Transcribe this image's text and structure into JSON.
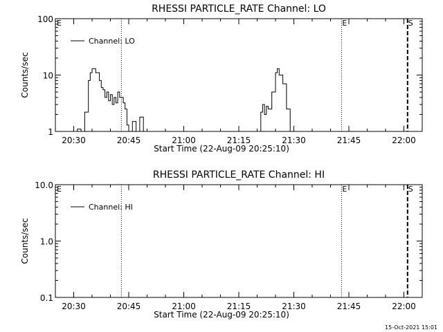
{
  "footer": {
    "timestamp": "15-Oct-2021 15:01"
  },
  "chart_data": [
    {
      "type": "line",
      "title": "RHESSI PARTICLE_RATE Channel: LO",
      "xlabel": "Start Time (22-Aug-09 20:25:10)",
      "ylabel": "Counts/sec",
      "yscale": "log",
      "ylim": [
        1,
        100
      ],
      "xlim": [
        "20:25",
        "22:05"
      ],
      "yticks": [
        "1",
        "10",
        "100"
      ],
      "xticks": [
        "20:30",
        "20:45",
        "21:00",
        "21:15",
        "21:30",
        "21:45",
        "22:00"
      ],
      "legend": {
        "position": "top-left",
        "entries": [
          "Channel: LO"
        ]
      },
      "markers": [
        {
          "time": "20:25",
          "label": "E",
          "style": "none"
        },
        {
          "time": "20:43",
          "label": "",
          "style": "dotted"
        },
        {
          "time": "21:43",
          "label": "E",
          "style": "dotted"
        },
        {
          "time": "22:01",
          "label": "S",
          "style": "dashed"
        }
      ],
      "series": [
        {
          "name": "Channel: LO",
          "segments": [
            {
              "x": [
                "20:30",
                "20:31",
                "20:32",
                "20:33",
                "20:34",
                "20:34.5",
                "20:35",
                "20:36",
                "20:37",
                "20:37.5",
                "20:38",
                "20:38.5",
                "20:39",
                "20:39.5",
                "20:40",
                "20:40.5",
                "20:41",
                "20:41.5",
                "20:42",
                "20:42.5",
                "20:43",
                "20:43.5",
                "20:44",
                "20:44.5",
                "20:45",
                "20:46",
                "20:47",
                "20:48",
                "20:49",
                "20:50"
              ],
              "y": [
                0.5,
                1.1,
                0.5,
                2.2,
                8,
                11,
                13,
                11,
                8,
                6,
                5.5,
                4,
                5,
                3.5,
                4.5,
                3,
                4,
                3.2,
                5,
                4,
                4,
                3.2,
                2.5,
                1.3,
                0.6,
                1.5,
                0.6,
                1.8,
                0.6,
                0.5
              ]
            },
            {
              "x": [
                "21:20",
                "21:21",
                "21:21.5",
                "21:22",
                "21:22.5",
                "21:23",
                "21:24",
                "21:25",
                "21:25.5",
                "21:26",
                "21:27",
                "21:28",
                "21:29",
                "21:30"
              ],
              "y": [
                0.5,
                2.2,
                3,
                2,
                2.8,
                2.5,
                5,
                11,
                13,
                10,
                7,
                2.5,
                1,
                0.5
              ]
            }
          ]
        }
      ]
    },
    {
      "type": "line",
      "title": "RHESSI PARTICLE_RATE Channel: HI",
      "xlabel": "Start Time (22-Aug-09 20:25:10)",
      "ylabel": "Counts/sec",
      "yscale": "log",
      "ylim": [
        0.1,
        10.0
      ],
      "xlim": [
        "20:25",
        "22:05"
      ],
      "yticks": [
        "0.1",
        "1.0",
        "10.0"
      ],
      "xticks": [
        "20:30",
        "20:45",
        "21:00",
        "21:15",
        "21:30",
        "21:45",
        "22:00"
      ],
      "legend": {
        "position": "top-left",
        "entries": [
          "Channel: HI"
        ]
      },
      "markers": [
        {
          "time": "20:25",
          "label": "E",
          "style": "none"
        },
        {
          "time": "20:43",
          "label": "",
          "style": "dotted"
        },
        {
          "time": "21:43",
          "label": "E",
          "style": "dotted"
        },
        {
          "time": "22:01",
          "label": "S",
          "style": "dashed"
        }
      ],
      "series": [
        {
          "name": "Channel: HI",
          "segments": []
        }
      ]
    }
  ]
}
